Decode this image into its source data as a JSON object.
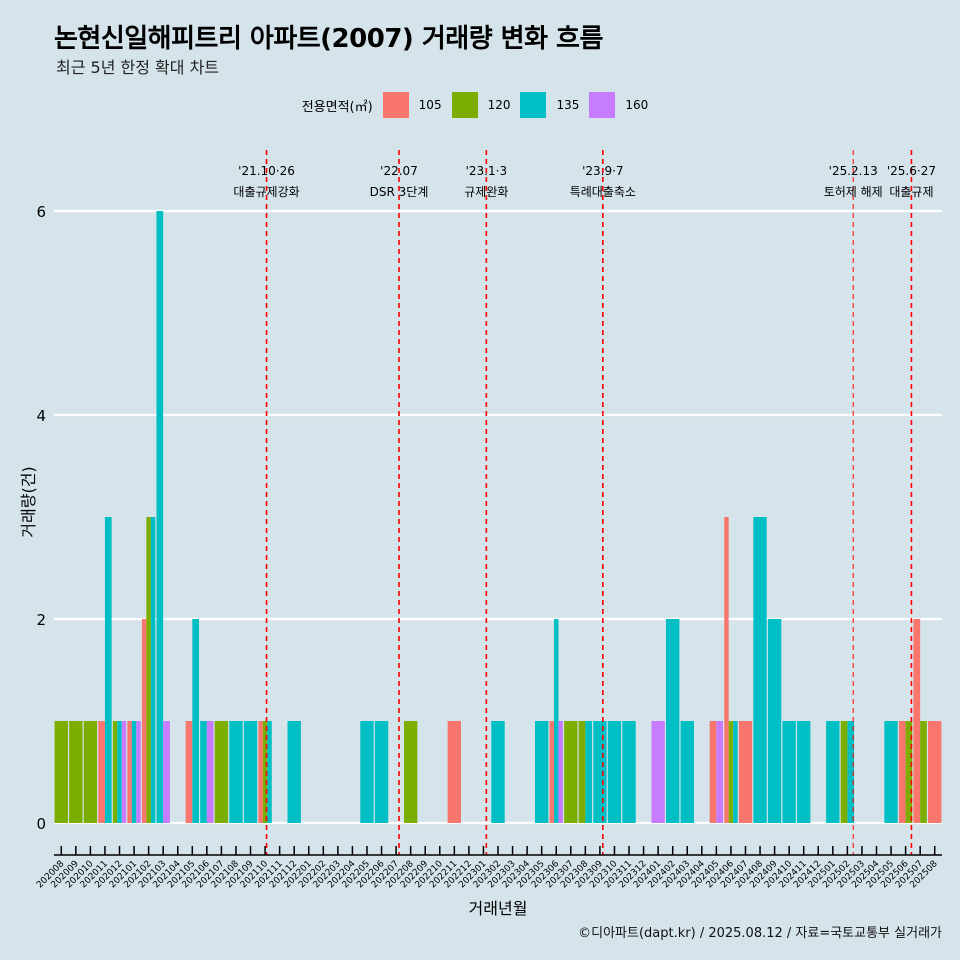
{
  "header": {
    "title": "논현신일해피트리 아파트(2007) 거래량 변화 흐름",
    "subtitle": "최근 5년 한정 확대 차트"
  },
  "legend": {
    "title": "전용면적(㎡)",
    "items": [
      {
        "label": "105",
        "color": "#f8766d"
      },
      {
        "label": "120",
        "color": "#7cae00"
      },
      {
        "label": "135",
        "color": "#00bfc4"
      },
      {
        "label": "160",
        "color": "#c77cff"
      }
    ]
  },
  "footer": {
    "credit": "©디아파트(dapt.kr) / 2025.08.12 / 자료=국토교통부 실거래가"
  },
  "chart_data": {
    "type": "bar",
    "xlabel": "거래년월",
    "ylabel": "거래량(건)",
    "ylim": [
      0,
      6.5
    ],
    "yticks": [
      0,
      2,
      4,
      6
    ],
    "categories": [
      "202008",
      "202009",
      "202010",
      "202011",
      "202012",
      "202101",
      "202102",
      "202103",
      "202104",
      "202105",
      "202106",
      "202107",
      "202108",
      "202109",
      "202110",
      "202111",
      "202112",
      "202201",
      "202202",
      "202203",
      "202204",
      "202205",
      "202206",
      "202207",
      "202208",
      "202209",
      "202210",
      "202211",
      "202212",
      "202301",
      "202302",
      "202303",
      "202304",
      "202305",
      "202306",
      "202307",
      "202308",
      "202309",
      "202310",
      "202311",
      "202312",
      "202401",
      "202402",
      "202403",
      "202404",
      "202405",
      "202406",
      "202407",
      "202408",
      "202409",
      "202410",
      "202411",
      "202412",
      "202501",
      "202502",
      "202503",
      "202504",
      "202505",
      "202506",
      "202507",
      "202508"
    ],
    "series": [
      {
        "name": "105",
        "color": "#f8766d",
        "values": [
          0,
          0,
          0,
          1,
          0,
          1,
          2,
          0,
          0,
          1,
          0,
          0,
          0,
          0,
          1,
          0,
          0,
          0,
          0,
          0,
          0,
          0,
          0,
          0,
          0,
          0,
          0,
          1,
          0,
          0,
          0,
          0,
          0,
          0,
          1,
          0,
          0,
          0,
          0,
          0,
          0,
          0,
          0,
          0,
          0,
          1,
          3,
          1,
          0,
          0,
          0,
          0,
          0,
          0,
          0,
          0,
          0,
          0,
          1,
          2,
          1
        ]
      },
      {
        "name": "120",
        "color": "#7cae00",
        "values": [
          1,
          1,
          1,
          0,
          1,
          0,
          3,
          0,
          0,
          0,
          0,
          1,
          0,
          0,
          1,
          0,
          0,
          0,
          0,
          0,
          0,
          0,
          0,
          0,
          1,
          0,
          0,
          0,
          0,
          0,
          0,
          0,
          0,
          0,
          0,
          1,
          1,
          0,
          0,
          0,
          0,
          0,
          0,
          0,
          0,
          0,
          1,
          0,
          0,
          0,
          0,
          0,
          0,
          0,
          1,
          0,
          0,
          0,
          1,
          1,
          0
        ]
      },
      {
        "name": "135",
        "color": "#00bfc4",
        "values": [
          0,
          0,
          0,
          3,
          1,
          1,
          3,
          6,
          0,
          2,
          1,
          0,
          1,
          1,
          1,
          0,
          1,
          0,
          0,
          0,
          0,
          1,
          1,
          0,
          0,
          0,
          0,
          0,
          0,
          0,
          1,
          0,
          0,
          1,
          2,
          0,
          1,
          1,
          1,
          1,
          0,
          0,
          2,
          1,
          0,
          0,
          1,
          0,
          3,
          2,
          1,
          1,
          0,
          1,
          1,
          0,
          0,
          1,
          0,
          0,
          0
        ]
      },
      {
        "name": "160",
        "color": "#c77cff",
        "values": [
          0,
          0,
          0,
          0,
          1,
          1,
          0,
          1,
          0,
          0,
          1,
          0,
          0,
          0,
          0,
          0,
          0,
          0,
          0,
          0,
          0,
          0,
          0,
          0,
          0,
          0,
          0,
          0,
          0,
          0,
          0,
          0,
          0,
          0,
          1,
          0,
          0,
          0,
          0,
          0,
          0,
          1,
          0,
          0,
          0,
          1,
          0,
          0,
          0,
          0,
          0,
          0,
          0,
          0,
          0,
          0,
          0,
          0,
          0,
          0,
          0
        ]
      }
    ],
    "annotations": [
      {
        "x": 14.1,
        "date": "'21.10·26",
        "label": "대출규제강화"
      },
      {
        "x": 23.2,
        "date": "'22.07",
        "label": "DSR 3단계"
      },
      {
        "x": 29.2,
        "date": "'23.1·3",
        "label": "규제완화"
      },
      {
        "x": 37.2,
        "date": "'23.9·7",
        "label": "특례대출축소"
      },
      {
        "x": 54.4,
        "date": "'25.2.13",
        "label": "토허제 해제"
      },
      {
        "x": 58.4,
        "date": "'25.6·27",
        "label": "대출규제"
      }
    ]
  }
}
